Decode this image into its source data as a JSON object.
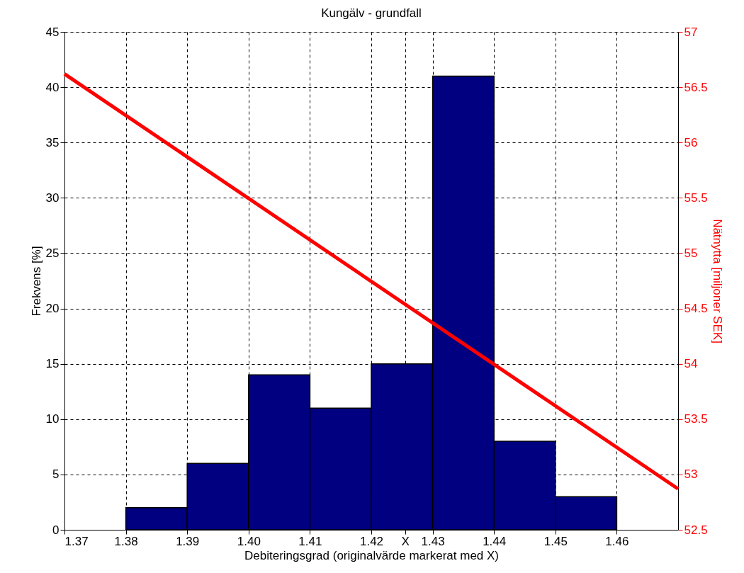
{
  "chart_data": {
    "type": "histogram",
    "title": "Kungälv - grundfall",
    "xlabel": "Debiteringsgrad (originalvärde markerat med X)",
    "ylabel": "Frekvens [%]",
    "y2label": "Nätnytta [miljoner SEK]",
    "bins": [
      1.38,
      1.39,
      1.4,
      1.41,
      1.42,
      1.43,
      1.44,
      1.45,
      1.46
    ],
    "values": [
      2,
      6,
      14,
      11,
      15,
      41,
      8,
      3
    ],
    "color": "#000080",
    "series": [
      {
        "type": "line",
        "axis": "y2",
        "x": [
          1.37,
          1.47
        ],
        "values": [
          56.62,
          52.87
        ],
        "color": "#ff0000"
      }
    ],
    "xlim": [
      1.37,
      1.47
    ],
    "xticks": [
      {
        "value": 1.37,
        "label": "1.37"
      },
      {
        "value": 1.38,
        "label": "1.38"
      },
      {
        "value": 1.39,
        "label": "1.39"
      },
      {
        "value": 1.4,
        "label": "1.40"
      },
      {
        "value": 1.41,
        "label": "1.41"
      },
      {
        "value": 1.42,
        "label": "1.42"
      },
      {
        "value": 1.4255,
        "label": "X"
      },
      {
        "value": 1.43,
        "label": "1.43"
      },
      {
        "value": 1.44,
        "label": "1.44"
      },
      {
        "value": 1.45,
        "label": "1.45"
      },
      {
        "value": 1.46,
        "label": "1.46"
      }
    ],
    "ylim": [
      0,
      45
    ],
    "yticks": [
      0,
      5,
      10,
      15,
      20,
      25,
      30,
      35,
      40,
      45
    ],
    "y2lim": [
      52.5,
      57
    ],
    "y2ticks": [
      52.5,
      53,
      53.5,
      54,
      54.5,
      55,
      55.5,
      56,
      56.5,
      57
    ],
    "grid": true
  }
}
